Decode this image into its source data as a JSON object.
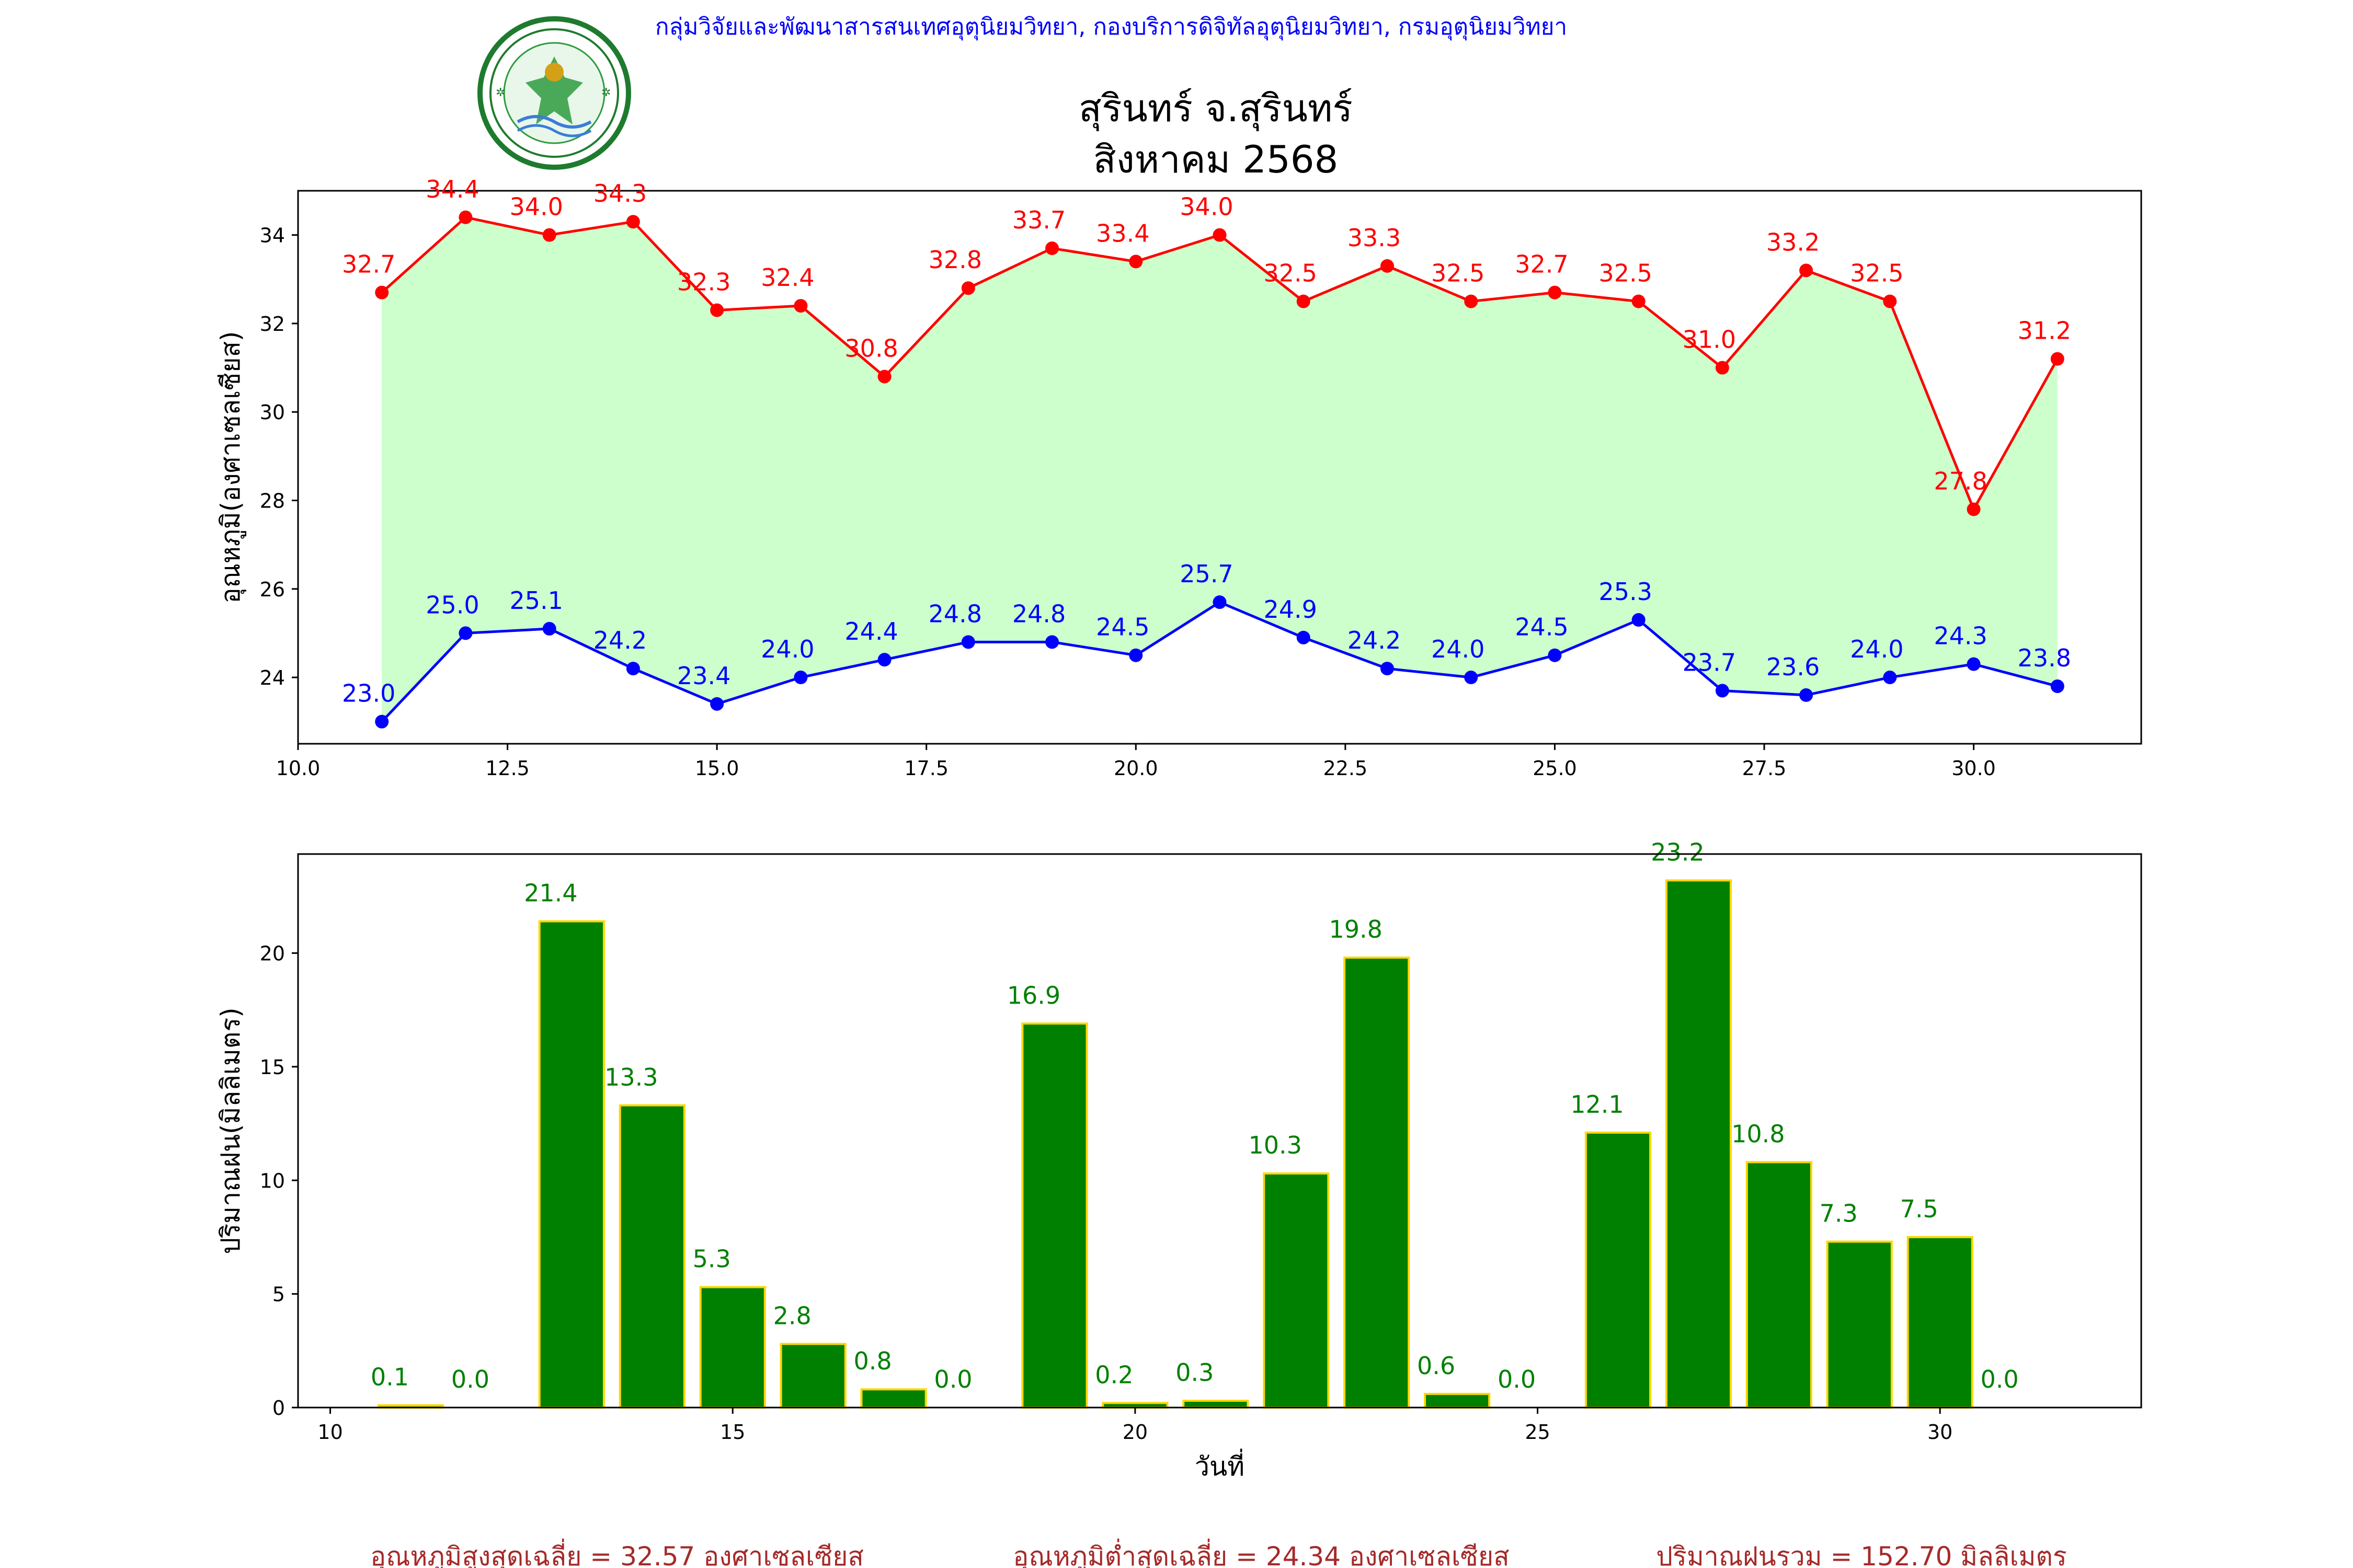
{
  "header": {
    "department_line": "กลุ่มวิจัยและพัฒนาสารสนเทศอุตุนิยมวิทยา, กองบริการดิจิทัลอุตุนิยมวิทยา, กรมอุตุนิยมวิทยา",
    "station": "สุรินทร์ จ.สุรินทร์",
    "period": "สิงหาคม 2568",
    "logo_text_top": "กรมอุตุนิยมวิทยา",
    "logo_text_bottom": "METEOROLOGICAL DEPARTMENT"
  },
  "colors": {
    "max_temp": "#ff0000",
    "min_temp": "#0000ff",
    "fill": "#ccffcc",
    "rain_bar": "#008000",
    "rain_edge": "#ffd700",
    "rain_label": "#008000",
    "footer": "#a52a2a",
    "header_line": "#0000ff"
  },
  "chart_data": [
    {
      "type": "line",
      "ylabel": "อุณหภูมิ(องศาเซลเซียส)",
      "xlim": [
        10.0,
        32.0
      ],
      "ylim": [
        22.5,
        35.0
      ],
      "xticks": [
        "10.0",
        "12.5",
        "15.0",
        "17.5",
        "20.0",
        "22.5",
        "25.0",
        "27.5",
        "30.0"
      ],
      "yticks": [
        "24",
        "26",
        "28",
        "30",
        "32",
        "34"
      ],
      "x": [
        11,
        12,
        13,
        14,
        15,
        16,
        17,
        18,
        19,
        20,
        21,
        22,
        23,
        24,
        25,
        26,
        27,
        28,
        29,
        30,
        31
      ],
      "series": [
        {
          "key": "max",
          "values": [
            32.7,
            34.4,
            34.0,
            34.3,
            32.3,
            32.4,
            30.8,
            32.8,
            33.7,
            33.4,
            34.0,
            32.5,
            33.3,
            32.5,
            32.7,
            32.5,
            31.0,
            33.2,
            32.5,
            27.8,
            31.2
          ],
          "labels": [
            "32.7",
            "34.4",
            "34.0",
            "34.3",
            "32.3",
            "32.4",
            "30.8",
            "32.8",
            "33.7",
            "33.4",
            "34.0",
            "32.5",
            "33.3",
            "32.5",
            "32.7",
            "32.5",
            "31.0",
            "33.2",
            "32.5",
            "27.8",
            "31.2"
          ]
        },
        {
          "key": "min",
          "values": [
            23.0,
            25.0,
            25.1,
            24.2,
            23.4,
            24.0,
            24.4,
            24.8,
            24.8,
            24.5,
            25.7,
            24.9,
            24.2,
            24.0,
            24.5,
            25.3,
            23.7,
            23.6,
            24.0,
            24.3,
            23.8
          ],
          "labels": [
            "23.0",
            "25.0",
            "25.1",
            "24.2",
            "23.4",
            "24.0",
            "24.4",
            "24.8",
            "24.8",
            "24.5",
            "25.7",
            "24.9",
            "24.2",
            "24.0",
            "24.5",
            "25.3",
            "23.7",
            "23.6",
            "24.0",
            "24.3",
            "23.8"
          ]
        }
      ],
      "grid": false,
      "fill_between": true
    },
    {
      "type": "bar",
      "ylabel": "ปริมาณฝน(มิลลิเมตร)",
      "xlabel": "วันที่",
      "xlim": [
        9.6,
        32.5
      ],
      "ylim": [
        0,
        24.36
      ],
      "xticks": [
        "10",
        "15",
        "20",
        "25",
        "30"
      ],
      "yticks": [
        "0",
        "5",
        "10",
        "15",
        "20"
      ],
      "x": [
        11,
        12,
        13,
        14,
        15,
        16,
        17,
        18,
        19,
        20,
        21,
        22,
        23,
        24,
        25,
        26,
        27,
        28,
        29,
        30,
        31
      ],
      "values": [
        0.1,
        0.0,
        21.4,
        13.3,
        5.3,
        2.8,
        0.8,
        0.0,
        16.9,
        0.2,
        0.3,
        10.3,
        19.8,
        0.6,
        0.0,
        12.1,
        23.2,
        10.8,
        7.3,
        7.5,
        0.0
      ],
      "labels": [
        "0.1",
        "0.0",
        "21.4",
        "13.3",
        "5.3",
        "2.8",
        "0.8",
        "0.0",
        "16.9",
        "0.2",
        "0.3",
        "10.3",
        "19.8",
        "0.6",
        "0.0",
        "12.1",
        "23.2",
        "10.8",
        "7.3",
        "7.5",
        "0.0"
      ],
      "grid": false
    }
  ],
  "footer": {
    "avg_max": "อุณหภูมิสูงสุดเฉลี่ย = 32.57 องศาเซลเซียส",
    "avg_min": "อุณหภูมิต่ำสุดเฉลี่ย = 24.34 องศาเซลเซียส",
    "total_rain": "ปริมาณฝนรวม = 152.70 มิลลิเมตร"
  }
}
